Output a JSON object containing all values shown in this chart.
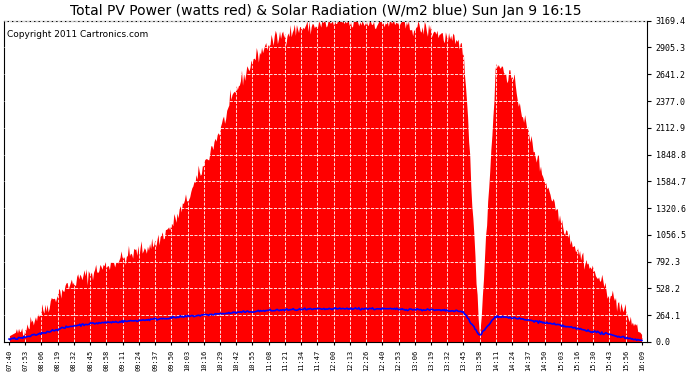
{
  "title": "Total PV Power (watts red) & Solar Radiation (W/m2 blue) Sun Jan 9 16:15",
  "copyright_text": "Copyright 2011 Cartronics.com",
  "ymax": 3169.4,
  "ymin": 0.0,
  "yticks": [
    0.0,
    264.1,
    528.2,
    792.3,
    1056.5,
    1320.6,
    1584.7,
    1848.8,
    2112.9,
    2377.0,
    2641.2,
    2905.3,
    3169.4
  ],
  "background_color": "#ffffff",
  "plot_bg_color": "#ffffff",
  "grid_color": "#aaaaaa",
  "fill_color": "#ff0000",
  "line_color_blue": "#0000ff",
  "title_fontsize": 10,
  "copyright_fontsize": 6.5,
  "time_labels": [
    "07:40",
    "07:53",
    "08:06",
    "08:19",
    "08:32",
    "08:45",
    "08:58",
    "09:11",
    "09:24",
    "09:37",
    "09:50",
    "10:03",
    "10:16",
    "10:29",
    "10:42",
    "10:55",
    "11:08",
    "11:21",
    "11:34",
    "11:47",
    "12:00",
    "12:13",
    "12:26",
    "12:40",
    "12:53",
    "13:06",
    "13:19",
    "13:32",
    "13:45",
    "13:58",
    "14:11",
    "14:24",
    "14:37",
    "14:50",
    "15:03",
    "15:16",
    "15:30",
    "15:43",
    "15:56",
    "16:09"
  ],
  "pv_power": [
    60,
    150,
    300,
    480,
    600,
    680,
    760,
    830,
    900,
    980,
    1150,
    1420,
    1750,
    2100,
    2500,
    2780,
    2950,
    3050,
    3100,
    3130,
    3150,
    3155,
    3155,
    3150,
    3145,
    3100,
    3080,
    3000,
    2900,
    20,
    2750,
    2600,
    2050,
    1600,
    1200,
    900,
    700,
    480,
    280,
    70
  ],
  "solar_rad": [
    25,
    45,
    85,
    125,
    160,
    180,
    192,
    202,
    212,
    225,
    238,
    252,
    265,
    278,
    290,
    300,
    310,
    316,
    320,
    323,
    326,
    328,
    328,
    326,
    324,
    320,
    316,
    308,
    298,
    60,
    255,
    238,
    215,
    190,
    162,
    132,
    102,
    72,
    42,
    15
  ]
}
